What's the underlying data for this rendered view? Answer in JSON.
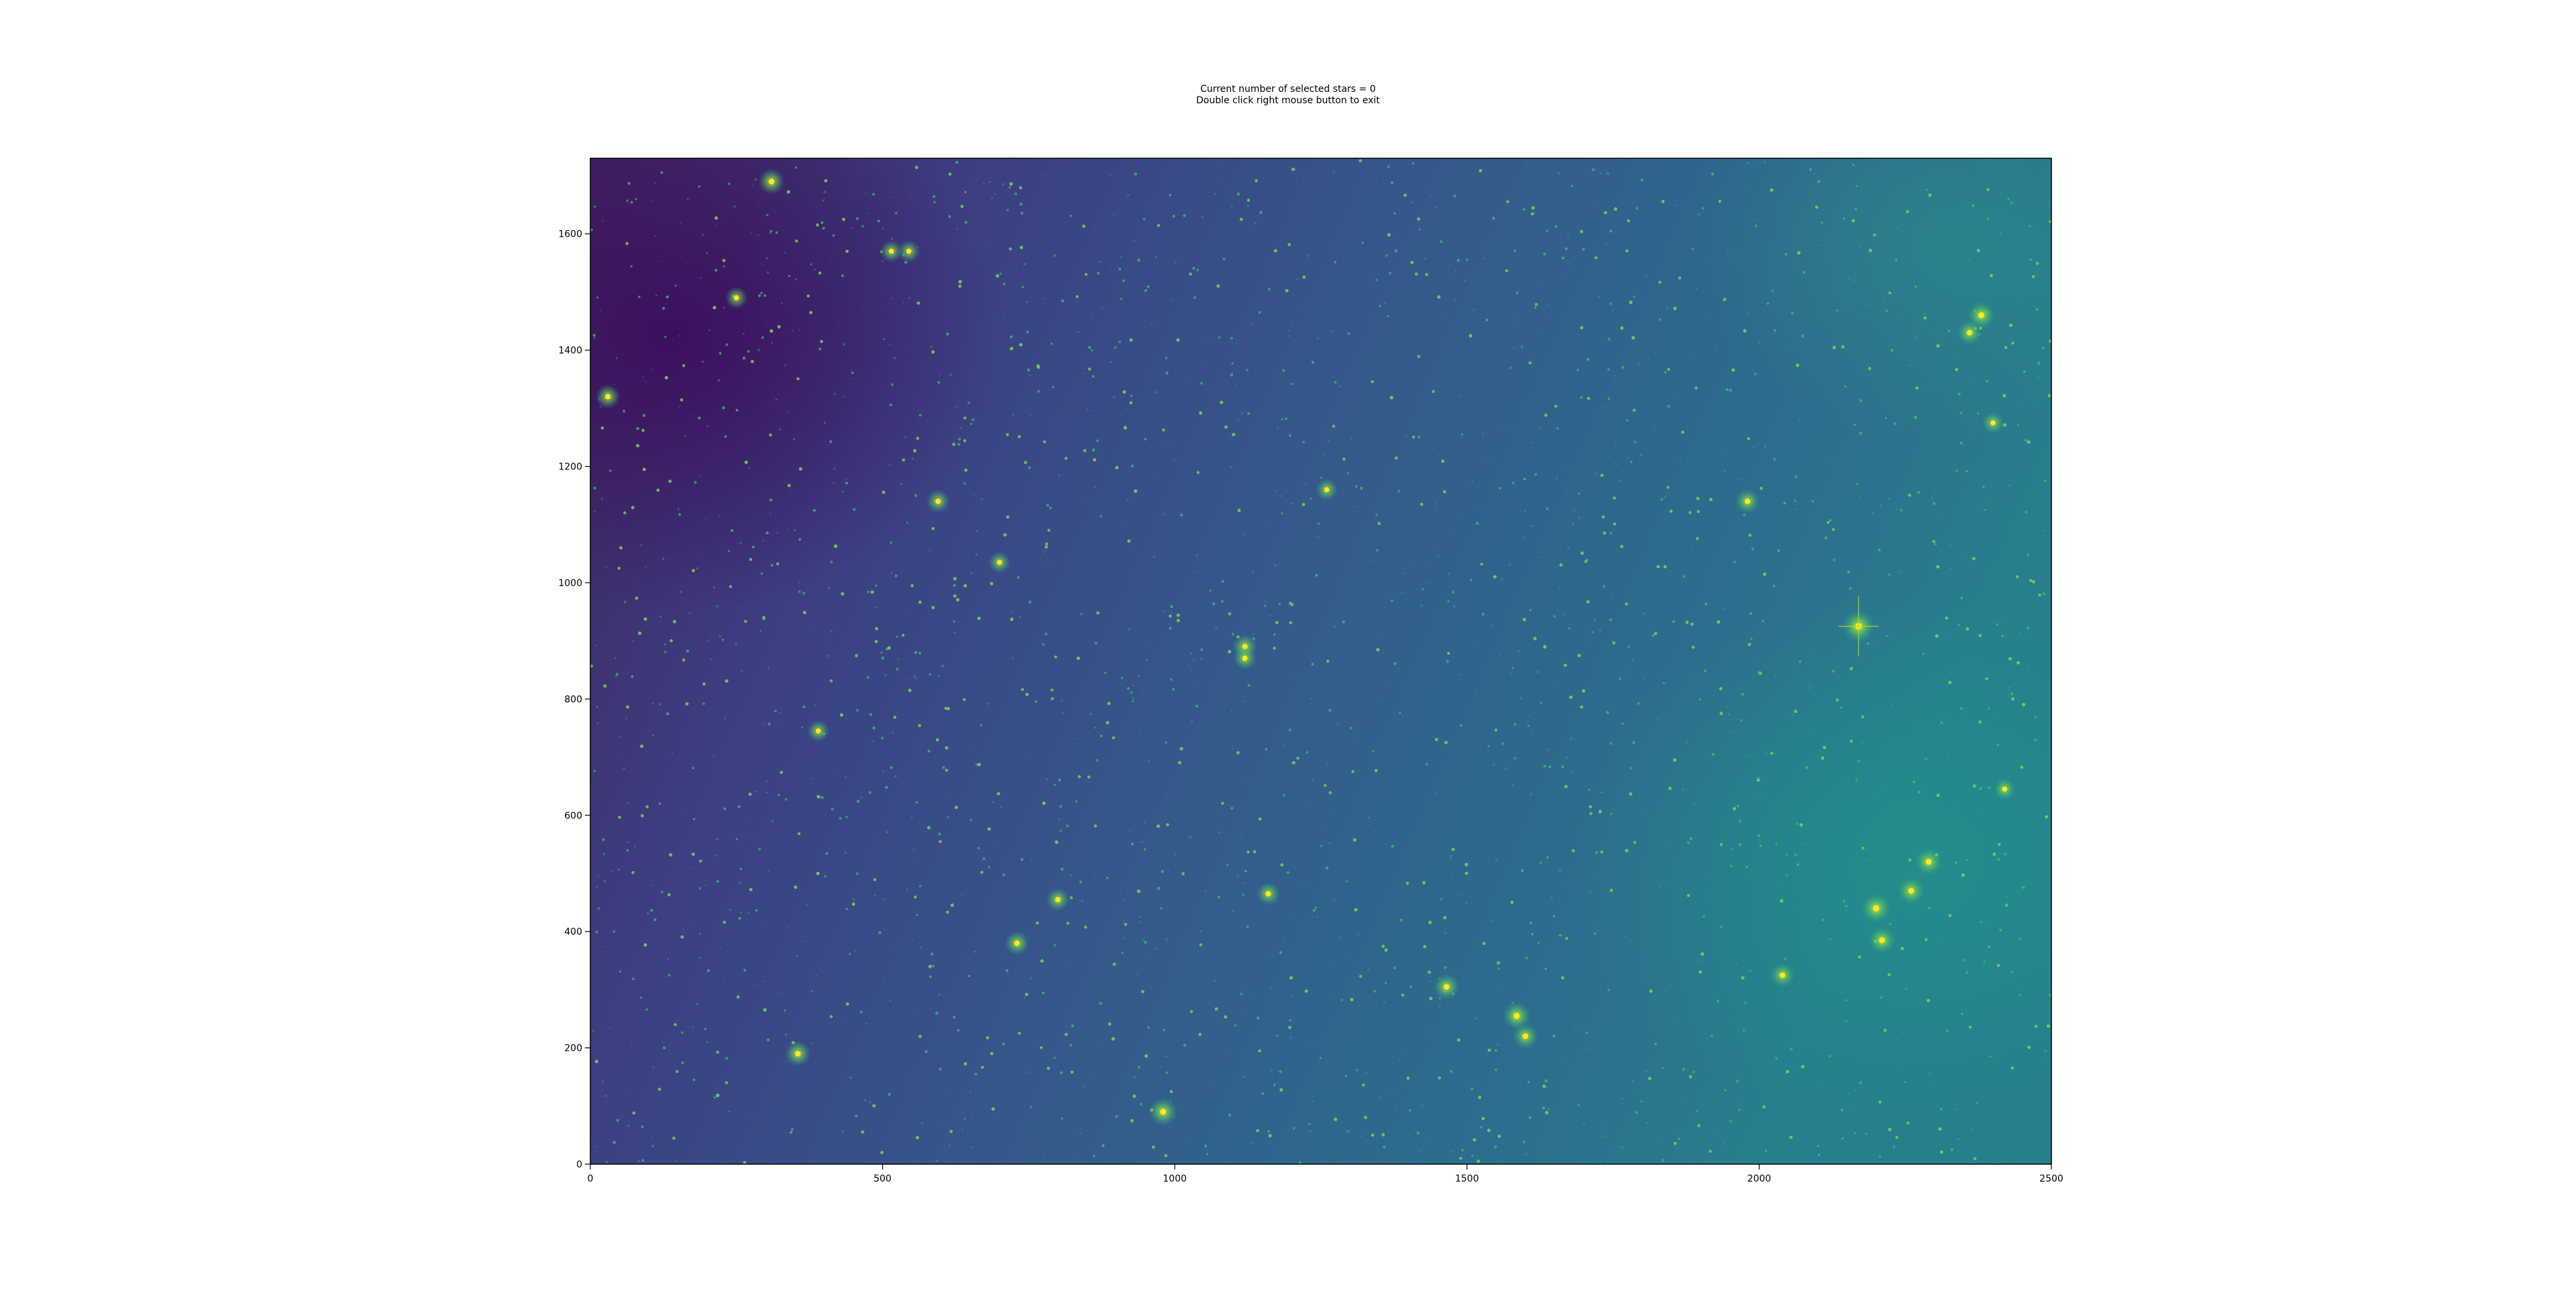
{
  "window": {
    "title_line_1": "Current number of selected stars = 0",
    "title_line_2": "Double click right mouse button to exit"
  },
  "chart_data": {
    "type": "heatmap",
    "description_colormap": "viridis",
    "title": "Current number of selected stars = 0\nDouble click right mouse button to exit",
    "xlabel": "",
    "ylabel": "",
    "xlim": [
      0,
      2500
    ],
    "ylim": [
      0,
      1730
    ],
    "x_ticks": [
      0,
      500,
      1000,
      1500,
      2000,
      2500
    ],
    "x_tick_labels": [
      "0",
      "500",
      "1000",
      "1500",
      "2000",
      "2500"
    ],
    "y_ticks": [
      0,
      200,
      400,
      600,
      800,
      1000,
      1200,
      1400,
      1600
    ],
    "y_tick_labels": [
      "0",
      "200",
      "400",
      "600",
      "800",
      "1000",
      "1200",
      "1400",
      "1600"
    ],
    "grid": false,
    "selected_stars": 0,
    "bright_sources": [
      {
        "x": 2170,
        "y": 925,
        "brightness": 1.0
      },
      {
        "x": 980,
        "y": 90,
        "brightness": 0.85
      },
      {
        "x": 2200,
        "y": 440,
        "brightness": 0.9
      },
      {
        "x": 2260,
        "y": 470,
        "brightness": 0.8
      },
      {
        "x": 2290,
        "y": 520,
        "brightness": 0.8
      },
      {
        "x": 2210,
        "y": 385,
        "brightness": 0.8
      },
      {
        "x": 1585,
        "y": 255,
        "brightness": 0.85
      },
      {
        "x": 1600,
        "y": 220,
        "brightness": 0.75
      },
      {
        "x": 1465,
        "y": 305,
        "brightness": 0.75
      },
      {
        "x": 2380,
        "y": 1460,
        "brightness": 0.8
      },
      {
        "x": 2360,
        "y": 1430,
        "brightness": 0.7
      },
      {
        "x": 355,
        "y": 190,
        "brightness": 0.75
      },
      {
        "x": 730,
        "y": 380,
        "brightness": 0.7
      },
      {
        "x": 1120,
        "y": 890,
        "brightness": 0.7
      },
      {
        "x": 1120,
        "y": 870,
        "brightness": 0.65
      },
      {
        "x": 30,
        "y": 1320,
        "brightness": 0.7
      },
      {
        "x": 310,
        "y": 1690,
        "brightness": 0.75
      },
      {
        "x": 1980,
        "y": 1140,
        "brightness": 0.7
      },
      {
        "x": 2040,
        "y": 325,
        "brightness": 0.7
      },
      {
        "x": 1160,
        "y": 465,
        "brightness": 0.65
      },
      {
        "x": 800,
        "y": 455,
        "brightness": 0.65
      },
      {
        "x": 595,
        "y": 1140,
        "brightness": 0.65
      },
      {
        "x": 390,
        "y": 745,
        "brightness": 0.6
      },
      {
        "x": 2400,
        "y": 1275,
        "brightness": 0.6
      },
      {
        "x": 2420,
        "y": 645,
        "brightness": 0.6
      },
      {
        "x": 1260,
        "y": 1160,
        "brightness": 0.6
      },
      {
        "x": 700,
        "y": 1035,
        "brightness": 0.6
      },
      {
        "x": 545,
        "y": 1570,
        "brightness": 0.6
      },
      {
        "x": 515,
        "y": 1570,
        "brightness": 0.6
      },
      {
        "x": 250,
        "y": 1490,
        "brightness": 0.6
      }
    ]
  }
}
